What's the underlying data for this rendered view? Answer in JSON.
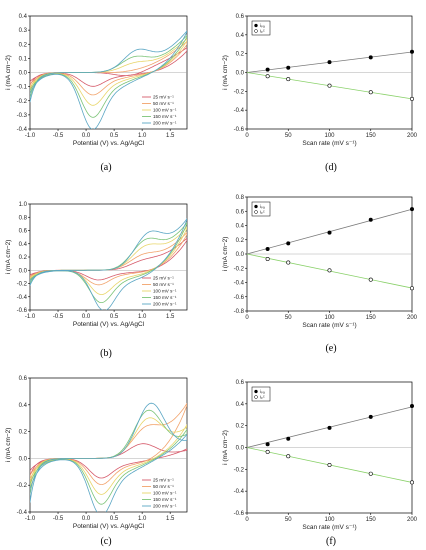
{
  "chart_data": [
    {
      "type": "line",
      "panel": "(a)",
      "xlabel": "Potential (V) vs. Ag/AgCl",
      "ylabel": "i (mA cm−2)",
      "xlim": [
        -1.0,
        1.8
      ],
      "ylim": [
        -0.4,
        0.4
      ],
      "xticks": [
        "-1.0",
        "-0.5",
        "0.0",
        "0.5",
        "1.0",
        "1.5"
      ],
      "yticks": [
        "-0.4",
        "-0.3",
        "-0.2",
        "-0.1",
        "0.0",
        "0.1",
        "0.2",
        "0.3",
        "0.4"
      ],
      "legend": "bottom-right",
      "series": [
        {
          "name": "25 mV s⁻¹",
          "color": "#d65b6b",
          "anodic_peak": [
            0.8,
            -0.03
          ],
          "cathodic_peak": [
            0.1,
            -0.08
          ],
          "end_current": 0.17,
          "low_end": -0.09
        },
        {
          "name": "50 mV s⁻¹",
          "color": "#f2a36b",
          "anodic_peak": [
            0.8,
            0.0
          ],
          "cathodic_peak": [
            0.1,
            -0.13
          ],
          "end_current": 0.22,
          "low_end": -0.12
        },
        {
          "name": "100 mV s⁻¹",
          "color": "#e8d66a",
          "anodic_peak": [
            0.85,
            0.05
          ],
          "cathodic_peak": [
            0.1,
            -0.19
          ],
          "end_current": 0.25,
          "low_end": -0.15
        },
        {
          "name": "150 mV s⁻¹",
          "color": "#7cc478",
          "anodic_peak": [
            0.85,
            0.09
          ],
          "cathodic_peak": [
            0.1,
            -0.26
          ],
          "end_current": 0.28,
          "low_end": -0.18
        },
        {
          "name": "200 mV s⁻¹",
          "color": "#5aa6c4",
          "anodic_peak": [
            0.9,
            0.13
          ],
          "cathodic_peak": [
            0.1,
            -0.33
          ],
          "end_current": 0.32,
          "low_end": -0.21
        }
      ]
    },
    {
      "type": "scatter",
      "panel": "(d)",
      "xlabel": "Scan rate (mV s⁻¹)",
      "ylabel": "i (mA cm−2)",
      "xlim": [
        0,
        200
      ],
      "ylim": [
        -0.6,
        0.6
      ],
      "xticks": [
        "0",
        "50",
        "100",
        "150",
        "200"
      ],
      "yticks": [
        "-0.6",
        "-0.4",
        "-0.2",
        "0.0",
        "0.2",
        "0.4",
        "0.6"
      ],
      "legend": "top-left",
      "series": [
        {
          "name": "iₚₐ",
          "color": "#000000",
          "fill": true,
          "line": "#7a7a7a",
          "x": [
            25,
            50,
            100,
            150,
            200
          ],
          "y": [
            0.03,
            0.05,
            0.11,
            0.16,
            0.22
          ]
        },
        {
          "name": "iₚᶜ",
          "color": "#000000",
          "fill": false,
          "line": "#8ad16a",
          "x": [
            25,
            50,
            100,
            150,
            200
          ],
          "y": [
            -0.04,
            -0.07,
            -0.14,
            -0.21,
            -0.28
          ]
        }
      ]
    },
    {
      "type": "line",
      "panel": "(b)",
      "xlabel": "Potential (V) vs. Ag/AgCl",
      "ylabel": "i (mA cm−2)",
      "xlim": [
        -1.0,
        1.8
      ],
      "ylim": [
        -0.6,
        1.0
      ],
      "xticks": [
        "-1.0",
        "-0.5",
        "0.0",
        "0.5",
        "1.0",
        "1.5"
      ],
      "yticks": [
        "-0.6",
        "-0.4",
        "-0.2",
        "0.0",
        "0.2",
        "0.4",
        "0.6",
        "0.8",
        "1.0"
      ],
      "legend": "bottom-right",
      "series": [
        {
          "name": "25 mV s⁻¹",
          "color": "#d65b6b",
          "anodic_peak": [
            1.0,
            0.08
          ],
          "cathodic_peak": [
            0.2,
            -0.12
          ],
          "end_current": 0.5,
          "low_end": -0.1
        },
        {
          "name": "50 mV s⁻¹",
          "color": "#f2a36b",
          "anodic_peak": [
            1.0,
            0.15
          ],
          "cathodic_peak": [
            0.2,
            -0.18
          ],
          "end_current": 0.6,
          "low_end": -0.13
        },
        {
          "name": "100 mV s⁻¹",
          "color": "#e8d66a",
          "anodic_peak": [
            1.05,
            0.25
          ],
          "cathodic_peak": [
            0.25,
            -0.3
          ],
          "end_current": 0.7,
          "low_end": -0.16
        },
        {
          "name": "150 mV s⁻¹",
          "color": "#7cc478",
          "anodic_peak": [
            1.05,
            0.33
          ],
          "cathodic_peak": [
            0.25,
            -0.4
          ],
          "end_current": 0.78,
          "low_end": -0.2
        },
        {
          "name": "200 mV s⁻¹",
          "color": "#5aa6c4",
          "anodic_peak": [
            1.1,
            0.4
          ],
          "cathodic_peak": [
            0.3,
            -0.5
          ],
          "end_current": 0.85,
          "low_end": -0.23
        }
      ]
    },
    {
      "type": "scatter",
      "panel": "(e)",
      "xlabel": "Scan rate (mV s⁻¹)",
      "ylabel": "i (mA cm−2)",
      "xlim": [
        0,
        200
      ],
      "ylim": [
        -0.8,
        0.8
      ],
      "xticks": [
        "0",
        "50",
        "100",
        "150",
        "200"
      ],
      "yticks": [
        "-0.8",
        "-0.6",
        "-0.4",
        "-0.2",
        "0.0",
        "0.2",
        "0.4",
        "0.6",
        "0.8"
      ],
      "legend": "top-left",
      "series": [
        {
          "name": "iₚₐ",
          "color": "#000000",
          "fill": true,
          "line": "#7a7a7a",
          "x": [
            25,
            50,
            100,
            150,
            200
          ],
          "y": [
            0.07,
            0.15,
            0.3,
            0.48,
            0.63
          ]
        },
        {
          "name": "iₚᶜ",
          "color": "#000000",
          "fill": false,
          "line": "#8ad16a",
          "x": [
            25,
            50,
            100,
            150,
            200
          ],
          "y": [
            -0.07,
            -0.12,
            -0.23,
            -0.36,
            -0.48
          ]
        }
      ]
    },
    {
      "type": "line",
      "panel": "(c)",
      "xlabel": "Potential (V) vs. Ag/AgCl",
      "ylabel": "i (mA cm−2)",
      "xlim": [
        -1.0,
        1.8
      ],
      "ylim": [
        -0.4,
        0.6
      ],
      "xticks": [
        "-1.0",
        "-0.5",
        "0.0",
        "0.5",
        "1.0",
        "1.5"
      ],
      "yticks": [
        "-0.4",
        "-0.2",
        "0.0",
        "0.2",
        "0.4",
        "0.6"
      ],
      "legend": "bottom-right",
      "series": [
        {
          "name": "25 mV s⁻¹",
          "color": "#d65b6b",
          "anodic_peak": [
            1.0,
            0.1
          ],
          "cathodic_peak": [
            0.25,
            -0.12
          ],
          "end_current": 0.08,
          "low_end": -0.13
        },
        {
          "name": "50 mV s⁻¹",
          "color": "#f2a36b",
          "anodic_peak": [
            1.05,
            0.16
          ],
          "cathodic_peak": [
            0.25,
            -0.16
          ],
          "end_current": 0.44,
          "low_end": -0.18
        },
        {
          "name": "100 mV s⁻¹",
          "color": "#e8d66a",
          "anodic_peak": [
            1.1,
            0.25
          ],
          "cathodic_peak": [
            0.25,
            -0.22
          ],
          "end_current": 0.28,
          "low_end": -0.22
        },
        {
          "name": "150 mV s⁻¹",
          "color": "#7cc478",
          "anodic_peak": [
            1.1,
            0.32
          ],
          "cathodic_peak": [
            0.25,
            -0.28
          ],
          "end_current": 0.24,
          "low_end": -0.27
        },
        {
          "name": "200 mV s⁻¹",
          "color": "#5aa6c4",
          "anodic_peak": [
            1.15,
            0.38
          ],
          "cathodic_peak": [
            0.25,
            -0.35
          ],
          "end_current": 0.2,
          "low_end": -0.33
        }
      ]
    },
    {
      "type": "scatter",
      "panel": "(f)",
      "xlabel": "Scan rate (mV s⁻¹)",
      "ylabel": "i (mA cm−2)",
      "xlim": [
        0,
        200
      ],
      "ylim": [
        -0.6,
        0.6
      ],
      "xticks": [
        "0",
        "50",
        "100",
        "150",
        "200"
      ],
      "yticks": [
        "-0.6",
        "-0.4",
        "-0.2",
        "0.0",
        "0.2",
        "0.4",
        "0.6"
      ],
      "legend": "top-left",
      "series": [
        {
          "name": "iₚₐ",
          "color": "#000000",
          "fill": true,
          "line": "#7a7a7a",
          "x": [
            25,
            50,
            100,
            150,
            200
          ],
          "y": [
            0.03,
            0.08,
            0.18,
            0.28,
            0.38
          ]
        },
        {
          "name": "iₚᶜ",
          "color": "#000000",
          "fill": false,
          "line": "#8ad16a",
          "x": [
            25,
            50,
            100,
            150,
            200
          ],
          "y": [
            -0.04,
            -0.08,
            -0.16,
            -0.24,
            -0.32
          ]
        }
      ]
    }
  ]
}
